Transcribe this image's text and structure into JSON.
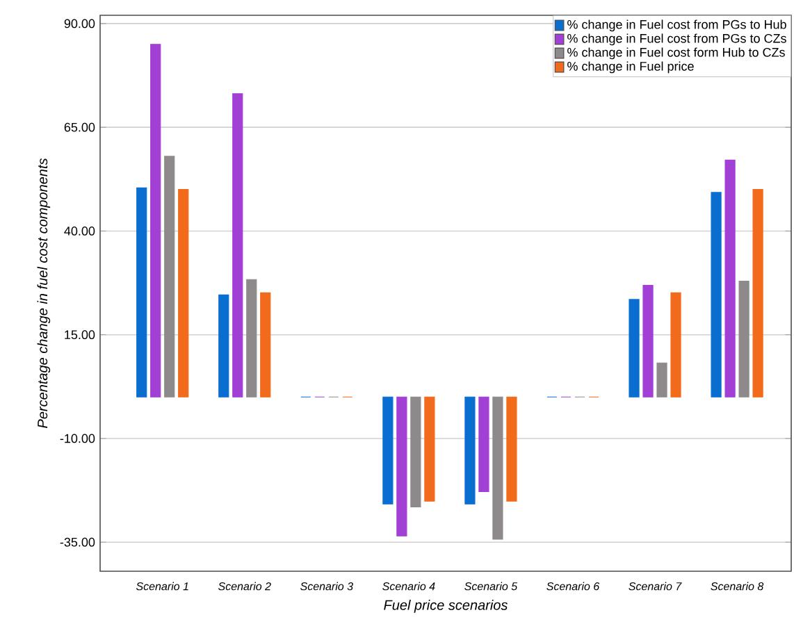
{
  "chart_data": {
    "type": "bar",
    "xlabel": "Fuel price scenarios",
    "ylabel": "Percentage change in fuel cost components",
    "categories": [
      "Scenario 1",
      "Scenario 2",
      "Scenario 3",
      "Scenario 4",
      "Scenario 5",
      "Scenario 6",
      "Scenario 7",
      "Scenario 8"
    ],
    "series": [
      {
        "name": "% change in Fuel cost from PGs to Hub",
        "color": "#0a6ed1",
        "values": [
          50.4,
          24.6,
          0,
          -25.8,
          -25.8,
          0,
          23.5,
          49.3
        ]
      },
      {
        "name": "% change in Fuel cost from PGs to CZs",
        "color": "#a23fd4",
        "values": [
          85.0,
          73.1,
          0,
          -33.5,
          -22.8,
          0,
          26.9,
          57.1
        ]
      },
      {
        "name": "% change in Fuel cost form Hub to CZs",
        "color": "#8e8a8b",
        "values": [
          58.0,
          28.3,
          0,
          -26.5,
          -34.3,
          0,
          8.2,
          27.9
        ]
      },
      {
        "name": "% change in Fuel price",
        "color": "#f26a1b",
        "values": [
          50.0,
          25.1,
          0,
          -25.1,
          -25.1,
          0,
          25.1,
          50.0
        ]
      }
    ],
    "ylim": [
      -42,
      92
    ],
    "yticks": [
      {
        "value": -35,
        "label": "-35.00"
      },
      {
        "value": -10,
        "label": "-10.00"
      },
      {
        "value": 15,
        "label": "15.00"
      },
      {
        "value": 40,
        "label": "40.00"
      },
      {
        "value": 65,
        "label": "65.00"
      },
      {
        "value": 90,
        "label": "90.00"
      }
    ],
    "grid": "y",
    "legend": "top right"
  }
}
